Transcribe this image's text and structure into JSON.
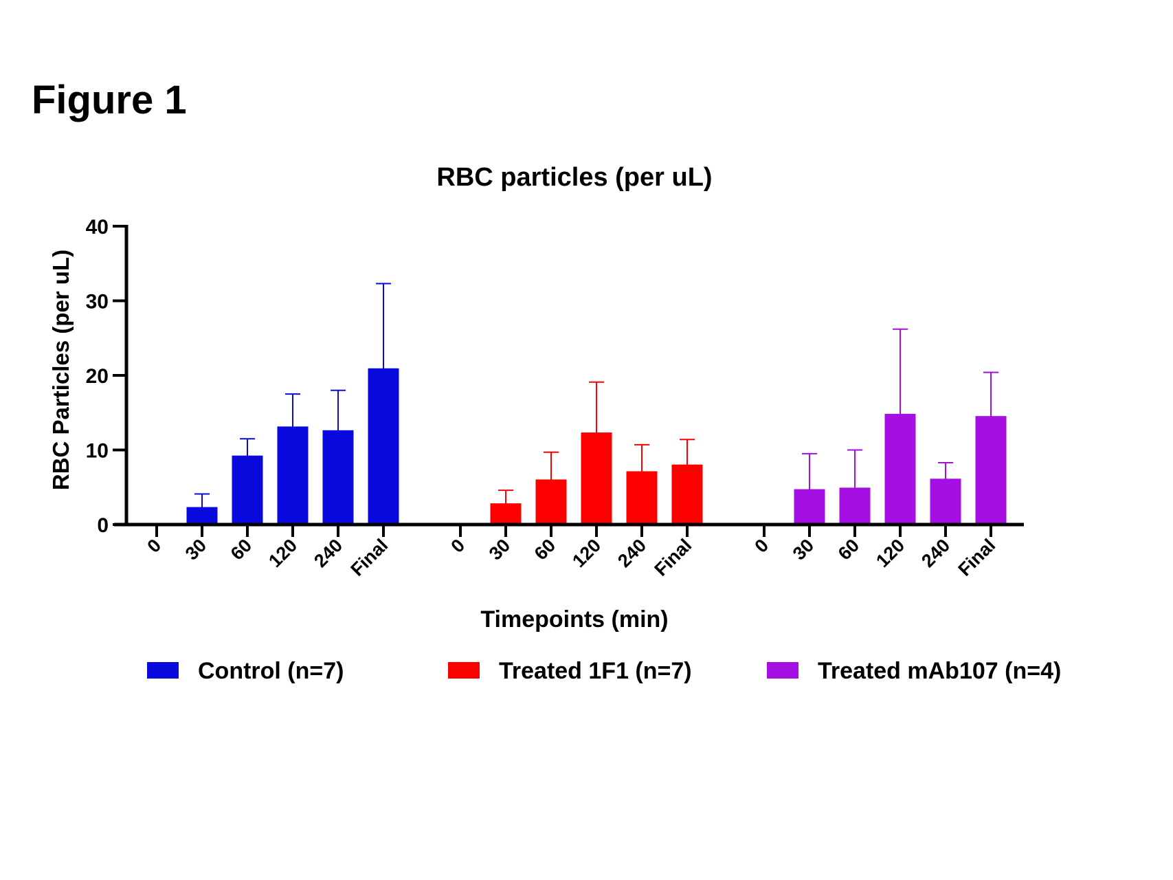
{
  "figure_label": "Figure 1",
  "chart_data": {
    "type": "bar",
    "title": "RBC particles (per uL)",
    "xlabel": "Timepoints (min)",
    "ylabel": "RBC Particles (per uL)",
    "ylim": [
      0,
      40
    ],
    "yticks": [
      "0",
      "10",
      "20",
      "30",
      "40"
    ],
    "categories": [
      "0",
      "30",
      "60",
      "120",
      "240",
      "Final"
    ],
    "legend_position": "bottom",
    "series": [
      {
        "name": "Control (n=7)",
        "color": "#0a0adf",
        "values": [
          0,
          2.3,
          9.2,
          13.1,
          12.6,
          20.9
        ],
        "errors": [
          0,
          1.8,
          2.3,
          4.4,
          5.4,
          11.4
        ]
      },
      {
        "name": "Treated 1F1 (n=7)",
        "color": "#ff0000",
        "values": [
          0,
          2.8,
          6.0,
          12.3,
          7.1,
          8.0
        ],
        "errors": [
          0,
          1.8,
          3.7,
          6.8,
          3.6,
          3.4
        ]
      },
      {
        "name": "Treated mAb107 (n=4)",
        "color": "#a50fe3",
        "values": [
          0,
          4.7,
          4.9,
          14.8,
          6.1,
          14.5
        ],
        "errors": [
          0,
          4.8,
          5.1,
          11.4,
          2.2,
          5.9
        ]
      }
    ]
  }
}
